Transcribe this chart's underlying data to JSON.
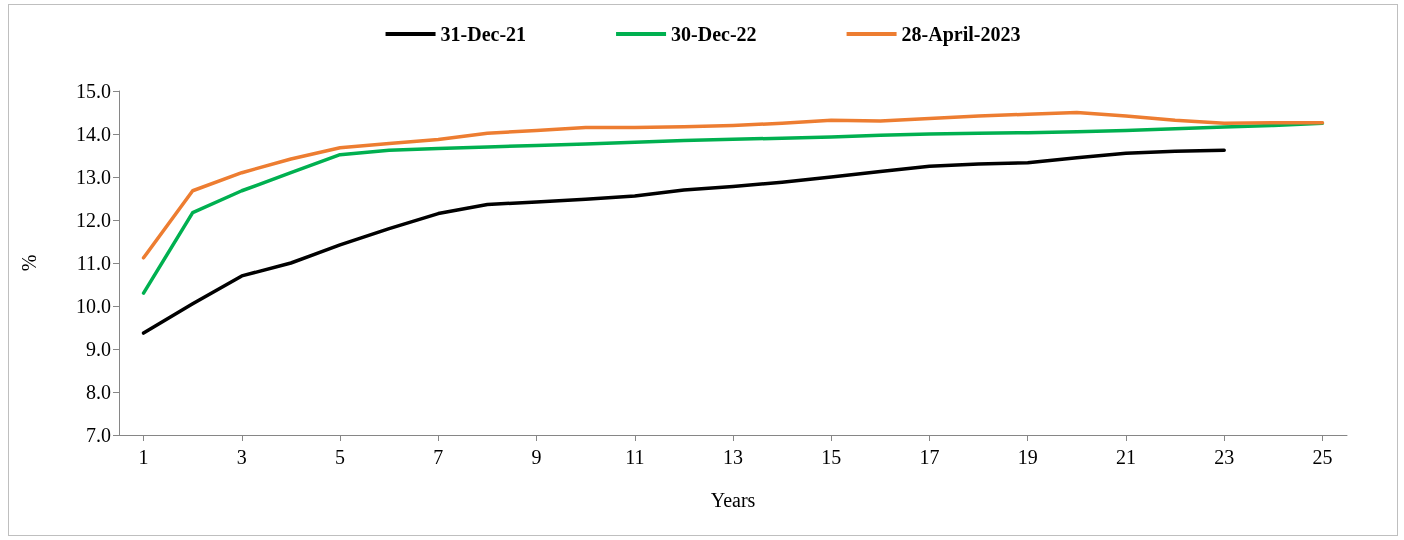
{
  "chart_data": {
    "type": "line",
    "xlabel": "Years",
    "ylabel": "%",
    "x": [
      1,
      2,
      3,
      4,
      5,
      6,
      7,
      8,
      9,
      10,
      11,
      12,
      13,
      14,
      15,
      16,
      17,
      18,
      19,
      20,
      21,
      22,
      23,
      24,
      25
    ],
    "xlim": [
      0.5,
      25.5
    ],
    "xticks": [
      1,
      3,
      5,
      7,
      9,
      11,
      13,
      15,
      17,
      19,
      21,
      23,
      25
    ],
    "ylim": [
      7,
      15
    ],
    "yticks": [
      {
        "value": 7,
        "label": "7.0"
      },
      {
        "value": 8,
        "label": "8.0"
      },
      {
        "value": 9,
        "label": "9.0"
      },
      {
        "value": 10,
        "label": "10.0"
      },
      {
        "value": 11,
        "label": "11.0"
      },
      {
        "value": 12,
        "label": "12.0"
      },
      {
        "value": 13,
        "label": "13.0"
      },
      {
        "value": 14,
        "label": "14.0"
      },
      {
        "value": 15,
        "label": "15.0"
      }
    ],
    "grid": false,
    "legend": "top",
    "marker": "none",
    "line_style": "solid",
    "series": [
      {
        "name": "31-Dec-21",
        "color": "#000000",
        "values": [
          9.37,
          10.05,
          10.7,
          11.0,
          11.42,
          11.8,
          12.15,
          12.36,
          12.42,
          12.48,
          12.56,
          12.7,
          12.78,
          12.88,
          13.0,
          13.13,
          13.25,
          13.3,
          13.33,
          13.45,
          13.55,
          13.6,
          13.62,
          null,
          null
        ]
      },
      {
        "name": "30-Dec-22",
        "color": "#00b050",
        "values": [
          10.3,
          12.17,
          12.68,
          13.1,
          13.52,
          13.62,
          13.66,
          13.7,
          13.73,
          13.77,
          13.81,
          13.85,
          13.88,
          13.9,
          13.93,
          13.97,
          14.0,
          14.02,
          14.03,
          14.05,
          14.08,
          14.12,
          14.16,
          14.2,
          14.25
        ]
      },
      {
        "name": "28-April-2023",
        "color": "#ed7d31",
        "values": [
          11.12,
          12.68,
          13.1,
          13.42,
          13.68,
          13.78,
          13.87,
          14.02,
          14.08,
          14.15,
          14.15,
          14.17,
          14.2,
          14.25,
          14.32,
          14.3,
          14.36,
          14.42,
          14.46,
          14.5,
          14.42,
          14.32,
          14.25,
          14.26,
          14.26
        ]
      }
    ]
  }
}
